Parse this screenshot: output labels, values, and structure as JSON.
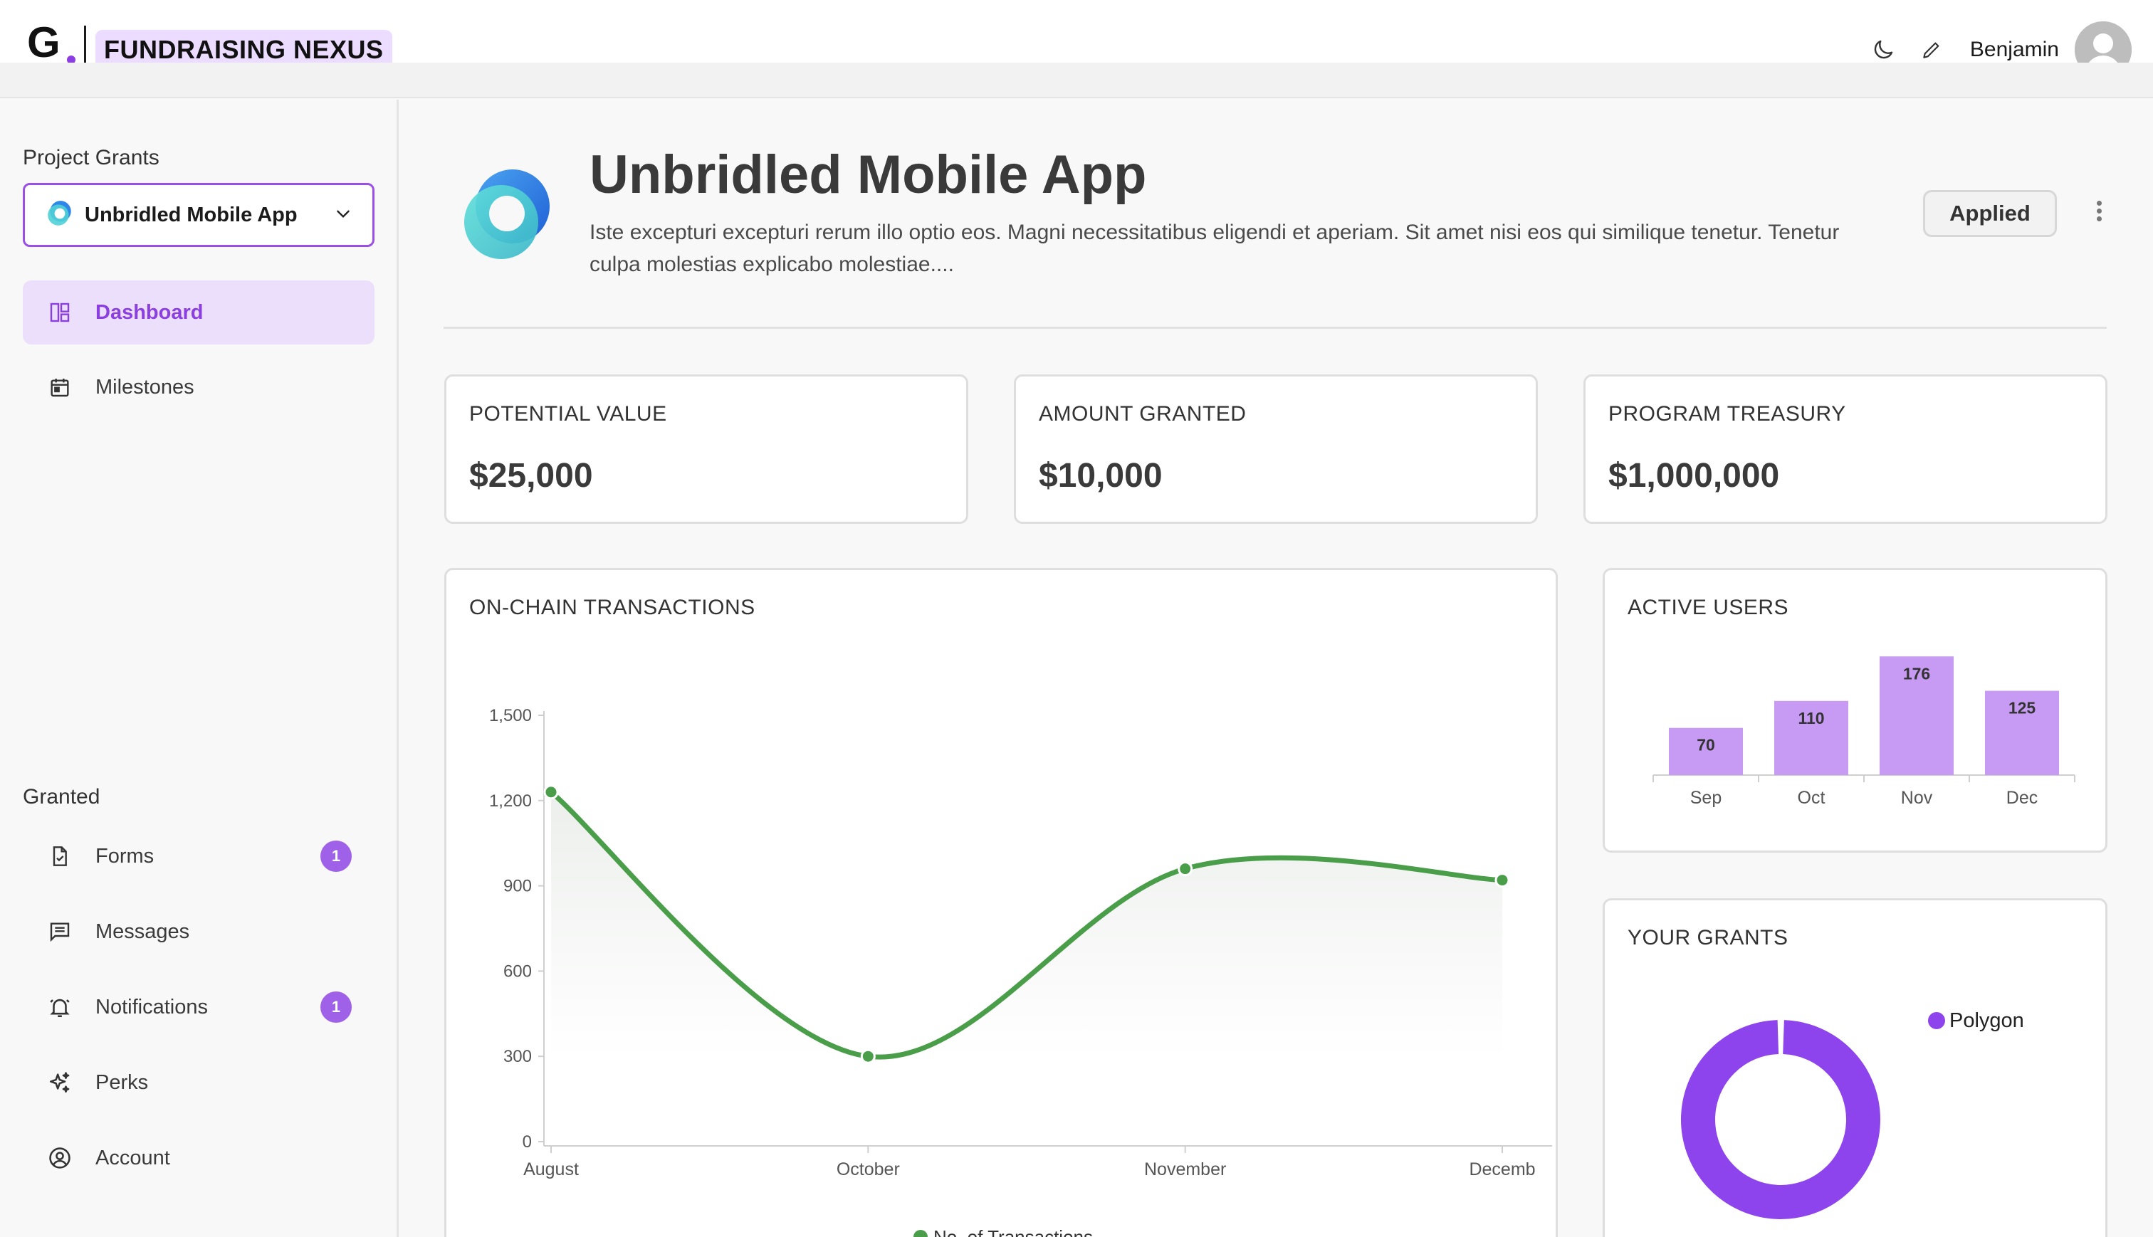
{
  "brand": {
    "letter": "G",
    "name": "FUNDRAISING NEXUS",
    "accent": "#8b3fe0"
  },
  "topbar": {
    "user_name": "Benjamin",
    "icons": [
      "moon-icon",
      "pencil-icon",
      "user-avatar"
    ]
  },
  "sidebar": {
    "section_project": "Project Grants",
    "project_select": {
      "value": "Unbridled Mobile App",
      "icon": "project-logo-icon"
    },
    "nav_top": [
      {
        "label": "Dashboard",
        "icon": "dashboard-icon",
        "active": true
      },
      {
        "label": "Milestones",
        "icon": "calendar-icon",
        "active": false
      }
    ],
    "section_granted": "Granted",
    "nav_bottom": [
      {
        "label": "Forms",
        "icon": "form-icon",
        "badge": "1"
      },
      {
        "label": "Messages",
        "icon": "message-icon"
      },
      {
        "label": "Notifications",
        "icon": "bell-icon",
        "badge": "1"
      },
      {
        "label": "Perks",
        "icon": "sparkle-icon"
      },
      {
        "label": "Account",
        "icon": "account-icon"
      }
    ]
  },
  "project": {
    "title": "Unbridled Mobile App",
    "description": "Iste excepturi excepturi rerum illo optio eos. Magni necessitatibus eligendi et aperiam. Sit amet nisi eos qui similique tenetur. Tenetur culpa molestias explicabo molestiae....",
    "status": "Applied"
  },
  "stats": [
    {
      "label": "POTENTIAL VALUE",
      "value": "$25,000"
    },
    {
      "label": "AMOUNT GRANTED",
      "value": "$10,000"
    },
    {
      "label": "PROGRAM TREASURY",
      "value": "$1,000,000"
    }
  ],
  "panels": {
    "transactions_title": "ON-CHAIN TRANSACTIONS",
    "active_users_title": "ACTIVE USERS",
    "grants_title": "YOUR GRANTS"
  },
  "chart_data": [
    {
      "type": "line",
      "title": "ON-CHAIN TRANSACTIONS",
      "categories": [
        "August",
        "October",
        "November",
        "Decemb"
      ],
      "series": [
        {
          "name": "No. of Transactions",
          "values": [
            1230,
            300,
            960,
            920
          ]
        }
      ],
      "ylim": [
        0,
        1500
      ],
      "yticks": [
        "0",
        "300",
        "600",
        "900",
        "1,200",
        "1,500"
      ],
      "color": "#4a9e4a",
      "legend": "bottom"
    },
    {
      "type": "bar",
      "title": "ACTIVE USERS",
      "categories": [
        "Sep",
        "Oct",
        "Nov",
        "Dec"
      ],
      "values": [
        70,
        110,
        176,
        125
      ],
      "color": "#c79bf3"
    },
    {
      "type": "pie",
      "title": "YOUR GRANTS",
      "categories": [
        "Polygon"
      ],
      "values": [
        100
      ],
      "color": "#8e44ec",
      "legend": "top-right"
    }
  ]
}
